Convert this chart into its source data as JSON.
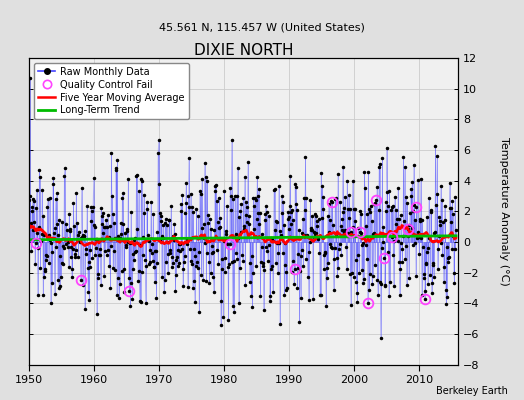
{
  "title": "DIXIE NORTH",
  "subtitle": "45.561 N, 115.457 W (United States)",
  "ylabel": "Temperature Anomaly (°C)",
  "credit": "Berkeley Earth",
  "xmin": 1950,
  "xmax": 2016,
  "ymin": -8,
  "ymax": 12,
  "yticks": [
    -8,
    -6,
    -4,
    -2,
    0,
    2,
    4,
    6,
    8,
    10,
    12
  ],
  "xticks": [
    1950,
    1960,
    1970,
    1980,
    1990,
    2000,
    2010
  ],
  "bg_color": "#e0e0e0",
  "plot_bg": "#f0f0f0",
  "raw_color": "#4444ff",
  "moving_avg_color": "#ff0000",
  "trend_color": "#00bb00",
  "qc_color": "#ff44ff",
  "seed": 137
}
